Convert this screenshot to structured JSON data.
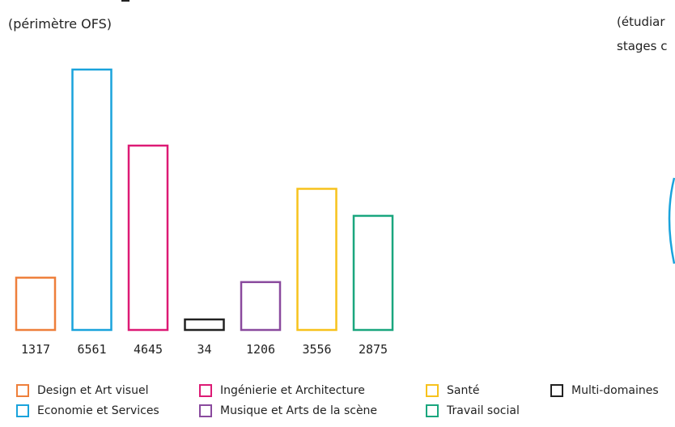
{
  "header": {
    "subtitle_left": "(périmètre OFS)",
    "subtitle_right_line1": "(étudiar",
    "subtitle_right_line2": "stages c"
  },
  "chart_data": {
    "type": "bar",
    "categories": [
      "Design et Art visuel",
      "Economie et Services",
      "Ingénierie et Architecture",
      "Multi-domaines",
      "Musique et Arts de la scène",
      "Santé",
      "Travail social"
    ],
    "values": [
      1317,
      6561,
      4645,
      34,
      1206,
      3556,
      2875
    ],
    "value_labels": [
      "1317",
      "6561",
      "4645",
      "34",
      "1206",
      "3556",
      "2875"
    ],
    "colors": [
      "#ee7f3b",
      "#1aa3dc",
      "#dd1a75",
      "#222222",
      "#8a4a9e",
      "#f7c21c",
      "#1aa67e"
    ],
    "style": "outlined bars, no axes, values printed below each bar"
  },
  "legend": [
    {
      "label": "Design et Art visuel",
      "color": "#ee7f3b"
    },
    {
      "label": "Economie et Services",
      "color": "#1aa3dc"
    },
    {
      "label": "Ingénierie et Architecture",
      "color": "#dd1a75"
    },
    {
      "label": "Musique et Arts de la scène",
      "color": "#8a4a9e"
    },
    {
      "label": "Santé",
      "color": "#f7c21c"
    },
    {
      "label": "Travail social",
      "color": "#1aa67e"
    },
    {
      "label": "Multi-domaines",
      "color": "#222222"
    }
  ],
  "colors": {
    "partial_circle": "#1aa3dc"
  }
}
